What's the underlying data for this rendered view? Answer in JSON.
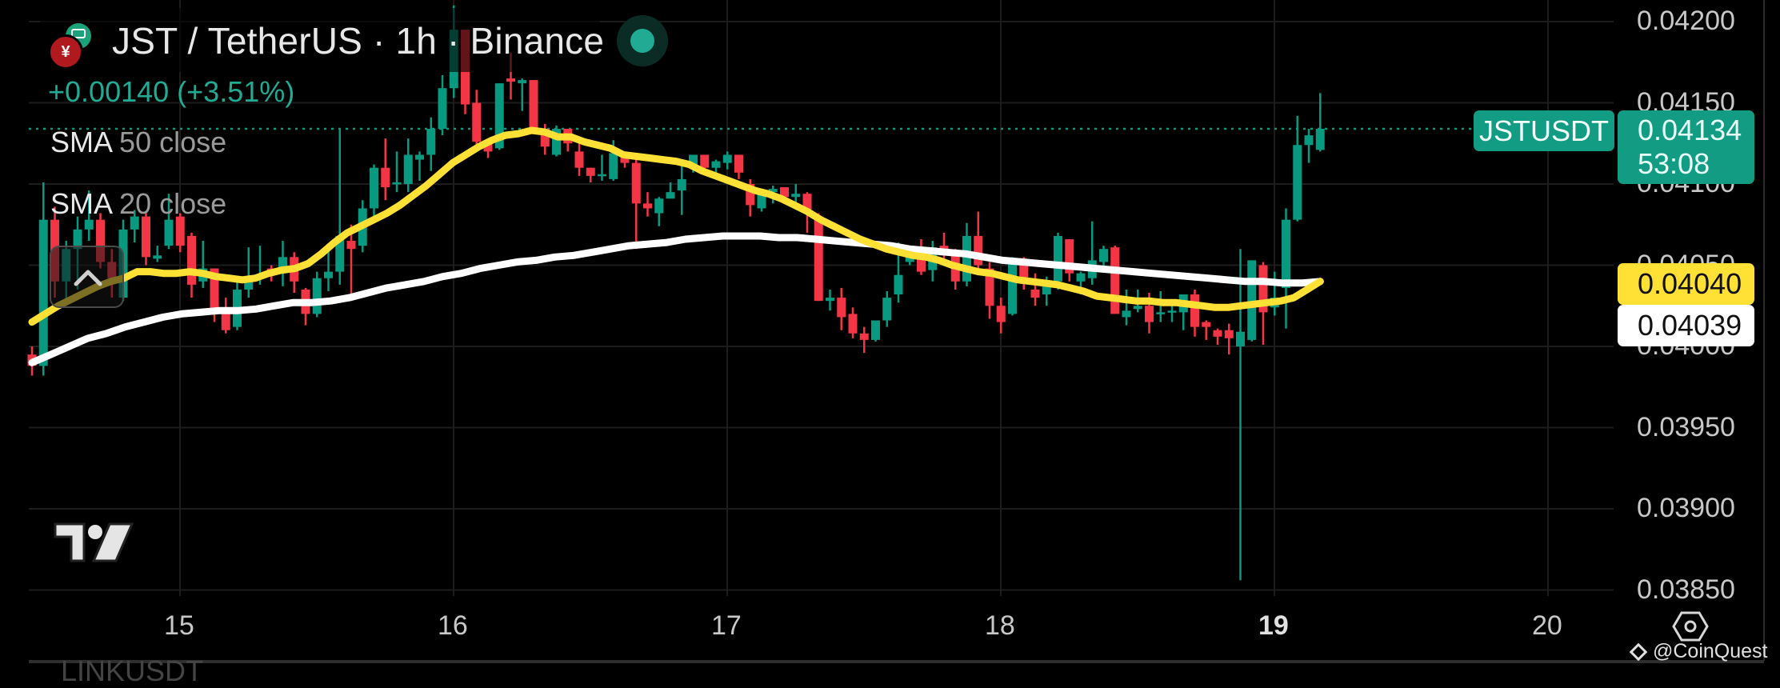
{
  "header": {
    "title": "JST / TetherUS · 1h · Binance",
    "symbol": "JST / TetherUS",
    "interval": "1h",
    "exchange": "Binance",
    "change": "+0.00140 (+3.51%)",
    "market_status": "open",
    "base_icon": "jst-coin-icon",
    "quote_icon": "usdt-coin-icon"
  },
  "indicators": [
    {
      "name": "SMA",
      "params": "50 close",
      "color": "#ffffff",
      "value": "0.04039"
    },
    {
      "name": "SMA",
      "params": "20 close",
      "color": "#ffe135",
      "value": "0.04040"
    }
  ],
  "price_scale": {
    "ticks": [
      "0.04200",
      "0.04150",
      "0.04100",
      "0.04050",
      "0.04000",
      "0.03950",
      "0.03900",
      "0.03850"
    ],
    "last_price": "0.04134",
    "countdown": "53:08",
    "symbol_tag": "JSTUSDT"
  },
  "time_scale": {
    "ticks": [
      "15",
      "16",
      "17",
      "18",
      "19",
      "20"
    ]
  },
  "colors": {
    "up": "#089981",
    "down": "#f23645",
    "background": "#000000",
    "grid": "#1c1c1c",
    "sma50": "#ffffff",
    "sma20": "#ffe135"
  },
  "watermark": "@CoinQuest",
  "next_symbol_partial": "LINKUSDT",
  "chart_data": {
    "type": "candlestick",
    "title": "JST / TetherUS · 1h · Binance",
    "interval": "1h",
    "x_ticks": [
      "15",
      "16",
      "17",
      "18",
      "19",
      "20"
    ],
    "ylim": [
      0.0385,
      0.0421
    ],
    "y_ticks": [
      0.042,
      0.0415,
      0.041,
      0.0405,
      0.04,
      0.0395,
      0.039,
      0.0385
    ],
    "grid": true,
    "last_price": 0.04134,
    "candles_ohlc": [
      [
        0.03995,
        0.04,
        0.03982,
        0.03988
      ],
      [
        0.03988,
        0.04101,
        0.03982,
        0.04078
      ],
      [
        0.04078,
        0.04086,
        0.0403,
        0.0404
      ],
      [
        0.0404,
        0.04065,
        0.04025,
        0.0406
      ],
      [
        0.0406,
        0.0408,
        0.04035,
        0.04072
      ],
      [
        0.04072,
        0.04096,
        0.04065,
        0.04078
      ],
      [
        0.04078,
        0.04082,
        0.04048,
        0.04052
      ],
      [
        0.04052,
        0.0406,
        0.0403,
        0.04042
      ],
      [
        0.0403,
        0.04078,
        0.04028,
        0.04072
      ],
      [
        0.04072,
        0.04084,
        0.04064,
        0.0408
      ],
      [
        0.0408,
        0.04082,
        0.0405,
        0.04055
      ],
      [
        0.04054,
        0.04062,
        0.04052,
        0.04056
      ],
      [
        0.04062,
        0.04094,
        0.0406,
        0.04078
      ],
      [
        0.0408,
        0.04082,
        0.04058,
        0.04062
      ],
      [
        0.04068,
        0.0407,
        0.0403,
        0.04038
      ],
      [
        0.0404,
        0.04065,
        0.04036,
        0.04048
      ],
      [
        0.04048,
        0.04048,
        0.04015,
        0.0402
      ],
      [
        0.0402,
        0.0403,
        0.04008,
        0.0401
      ],
      [
        0.04012,
        0.0404,
        0.0401,
        0.04035
      ],
      [
        0.04035,
        0.04061,
        0.0403,
        0.04042
      ],
      [
        0.04042,
        0.04062,
        0.04038,
        0.04044
      ],
      [
        0.04048,
        0.0405,
        0.0404,
        0.04045
      ],
      [
        0.04045,
        0.04065,
        0.04037,
        0.04055
      ],
      [
        0.04055,
        0.04058,
        0.04033,
        0.0404
      ],
      [
        0.04035,
        0.04036,
        0.04013,
        0.0402
      ],
      [
        0.0402,
        0.04046,
        0.04018,
        0.04042
      ],
      [
        0.04042,
        0.04062,
        0.04034,
        0.04046
      ],
      [
        0.04046,
        0.04134,
        0.04038,
        0.04068
      ],
      [
        0.04065,
        0.04075,
        0.04028,
        0.0406
      ],
      [
        0.04062,
        0.0409,
        0.04058,
        0.04085
      ],
      [
        0.04085,
        0.04112,
        0.0408,
        0.0411
      ],
      [
        0.0411,
        0.04128,
        0.0409,
        0.04098
      ],
      [
        0.041,
        0.0412,
        0.04095,
        0.04101
      ],
      [
        0.041,
        0.04128,
        0.04095,
        0.04118
      ],
      [
        0.04115,
        0.0412,
        0.04102,
        0.04118
      ],
      [
        0.04118,
        0.04141,
        0.04108,
        0.04134
      ],
      [
        0.04134,
        0.04167,
        0.0413,
        0.04159
      ],
      [
        0.04159,
        0.0421,
        0.04153,
        0.04195
      ],
      [
        0.04195,
        0.04193,
        0.04143,
        0.04149
      ],
      [
        0.0415,
        0.04158,
        0.0412,
        0.04126
      ],
      [
        0.04126,
        0.04126,
        0.04116,
        0.0412
      ],
      [
        0.04122,
        0.04162,
        0.04121,
        0.04162
      ],
      [
        0.04165,
        0.04181,
        0.04152,
        0.04163
      ],
      [
        0.04162,
        0.04165,
        0.04145,
        0.04164
      ],
      [
        0.04164,
        0.04164,
        0.04133,
        0.04134
      ],
      [
        0.04134,
        0.04137,
        0.04118,
        0.04123
      ],
      [
        0.04118,
        0.04136,
        0.04117,
        0.04134
      ],
      [
        0.04134,
        0.04134,
        0.0412,
        0.04125
      ],
      [
        0.0412,
        0.04125,
        0.04105,
        0.0411
      ],
      [
        0.0411,
        0.0411,
        0.04101,
        0.04105
      ],
      [
        0.04106,
        0.04118,
        0.04102,
        0.04106
      ],
      [
        0.04103,
        0.04127,
        0.04102,
        0.04119
      ],
      [
        0.04118,
        0.04119,
        0.0411,
        0.04113
      ],
      [
        0.04113,
        0.04116,
        0.0406,
        0.04088
      ],
      [
        0.04088,
        0.04095,
        0.0408,
        0.04085
      ],
      [
        0.04082,
        0.04092,
        0.04074,
        0.04091
      ],
      [
        0.04091,
        0.04101,
        0.04092,
        0.04095
      ],
      [
        0.04096,
        0.04113,
        0.04081,
        0.04103
      ],
      [
        0.0411,
        0.04115,
        0.04107,
        0.04118
      ],
      [
        0.04118,
        0.04118,
        0.04106,
        0.0411
      ],
      [
        0.0411,
        0.04115,
        0.04105,
        0.04114
      ],
      [
        0.04113,
        0.0412,
        0.04109,
        0.04118
      ],
      [
        0.04118,
        0.04118,
        0.04103,
        0.04107
      ],
      [
        0.041,
        0.04103,
        0.0408,
        0.04087
      ],
      [
        0.04085,
        0.04097,
        0.04083,
        0.04095
      ],
      [
        0.04095,
        0.04099,
        0.04088,
        0.04097
      ],
      [
        0.04098,
        0.04098,
        0.0409,
        0.04092
      ],
      [
        0.04092,
        0.041,
        0.04085,
        0.04094
      ],
      [
        0.04094,
        0.04095,
        0.0407,
        0.04082
      ],
      [
        0.0408,
        0.04082,
        0.04028,
        0.04028
      ],
      [
        0.04028,
        0.04035,
        0.04022,
        0.0403
      ],
      [
        0.0403,
        0.04036,
        0.0401,
        0.04018
      ],
      [
        0.0402,
        0.04024,
        0.04005,
        0.04008
      ],
      [
        0.04008,
        0.04012,
        0.03996,
        0.04004
      ],
      [
        0.04004,
        0.04016,
        0.04003,
        0.04016
      ],
      [
        0.04016,
        0.04034,
        0.04012,
        0.0403
      ],
      [
        0.04032,
        0.04064,
        0.04027,
        0.04044
      ],
      [
        0.04052,
        0.04059,
        0.0405,
        0.0406
      ],
      [
        0.04058,
        0.04066,
        0.04044,
        0.04046
      ],
      [
        0.04047,
        0.04065,
        0.0404,
        0.04061
      ],
      [
        0.04062,
        0.0407,
        0.04053,
        0.04056
      ],
      [
        0.04057,
        0.0406,
        0.04035,
        0.0404
      ],
      [
        0.0404,
        0.04076,
        0.04037,
        0.04068
      ],
      [
        0.04068,
        0.04083,
        0.04045,
        0.0405
      ],
      [
        0.04048,
        0.04052,
        0.04017,
        0.04025
      ],
      [
        0.04025,
        0.0403,
        0.04008,
        0.04015
      ],
      [
        0.0402,
        0.04055,
        0.04019,
        0.04052
      ],
      [
        0.04052,
        0.04055,
        0.04035,
        0.0404
      ],
      [
        0.04035,
        0.04045,
        0.04025,
        0.0403
      ],
      [
        0.04032,
        0.04043,
        0.04025,
        0.0404
      ],
      [
        0.0404,
        0.0407,
        0.04035,
        0.04068
      ],
      [
        0.04066,
        0.04066,
        0.0404,
        0.04045
      ],
      [
        0.0404,
        0.04046,
        0.04032,
        0.04045
      ],
      [
        0.04042,
        0.04077,
        0.04038,
        0.04053
      ],
      [
        0.04052,
        0.04062,
        0.04046,
        0.0406
      ],
      [
        0.04061,
        0.04062,
        0.04025,
        0.0402
      ],
      [
        0.04018,
        0.04035,
        0.04013,
        0.04022
      ],
      [
        0.04023,
        0.04035,
        0.04021,
        0.04025
      ],
      [
        0.04025,
        0.04033,
        0.04008,
        0.04015
      ],
      [
        0.0402,
        0.04034,
        0.04015,
        0.04021
      ],
      [
        0.04021,
        0.04026,
        0.04015,
        0.04022
      ],
      [
        0.04021,
        0.0403,
        0.0401,
        0.04032
      ],
      [
        0.04032,
        0.04035,
        0.04006,
        0.04012
      ],
      [
        0.04015,
        0.04016,
        0.04004,
        0.04012
      ],
      [
        0.0401,
        0.04011,
        0.04001,
        0.04006
      ],
      [
        0.0401,
        0.04014,
        0.03995,
        0.04005
      ],
      [
        0.04,
        0.0406,
        0.03856,
        0.04009
      ],
      [
        0.04004,
        0.04053,
        0.04003,
        0.04053
      ],
      [
        0.0405,
        0.04052,
        0.04001,
        0.04021
      ],
      [
        0.04024,
        0.04046,
        0.04019,
        0.0403
      ],
      [
        0.04036,
        0.04085,
        0.04011,
        0.04078
      ],
      [
        0.04078,
        0.04142,
        0.04077,
        0.04124
      ],
      [
        0.04124,
        0.04134,
        0.04113,
        0.0413
      ],
      [
        0.04121,
        0.04156,
        0.0412,
        0.04134
      ]
    ],
    "sma20": [
      0.04015,
      0.0402,
      0.04025,
      0.04029,
      0.04033,
      0.04037,
      0.0404,
      0.04042,
      0.04046,
      0.04046,
      0.04045,
      0.04045,
      0.04046,
      0.04045,
      0.04043,
      0.04042,
      0.04041,
      0.04042,
      0.04045,
      0.04047,
      0.04048,
      0.04051,
      0.04057,
      0.04064,
      0.0407,
      0.04074,
      0.04078,
      0.04082,
      0.04087,
      0.04093,
      0.04099,
      0.04106,
      0.04113,
      0.04118,
      0.04123,
      0.04127,
      0.0413,
      0.04131,
      0.04133,
      0.04132,
      0.04129,
      0.04129,
      0.04126,
      0.04124,
      0.04122,
      0.04118,
      0.04117,
      0.04116,
      0.04115,
      0.04114,
      0.04112,
      0.04108,
      0.04105,
      0.04102,
      0.04099,
      0.04096,
      0.04094,
      0.04091,
      0.04087,
      0.04083,
      0.04078,
      0.04074,
      0.0407,
      0.04066,
      0.04063,
      0.0406,
      0.04058,
      0.04056,
      0.04055,
      0.04053,
      0.0405,
      0.04048,
      0.04046,
      0.04045,
      0.04043,
      0.04041,
      0.0404,
      0.04039,
      0.04038,
      0.04036,
      0.04034,
      0.04031,
      0.0403,
      0.04029,
      0.04028,
      0.04028,
      0.04027,
      0.04027,
      0.04026,
      0.04025,
      0.04024,
      0.04024,
      0.04025,
      0.04026,
      0.04027,
      0.04028,
      0.0403,
      0.04035,
      0.0404
    ],
    "sma50": [
      0.0399,
      0.03995,
      0.04,
      0.04005,
      0.04008,
      0.04012,
      0.04015,
      0.04018,
      0.0402,
      0.04021,
      0.04022,
      0.04022,
      0.04023,
      0.04025,
      0.04027,
      0.04027,
      0.04028,
      0.0403,
      0.04033,
      0.04036,
      0.04038,
      0.0404,
      0.04043,
      0.04045,
      0.04048,
      0.0405,
      0.04052,
      0.04053,
      0.04055,
      0.04056,
      0.04058,
      0.0406,
      0.04062,
      0.04063,
      0.04064,
      0.04066,
      0.04067,
      0.04068,
      0.04068,
      0.04068,
      0.04067,
      0.04067,
      0.04066,
      0.04065,
      0.04064,
      0.04063,
      0.04062,
      0.0406,
      0.04059,
      0.04058,
      0.04057,
      0.04055,
      0.04053,
      0.04052,
      0.04051,
      0.0405,
      0.04049,
      0.04048,
      0.04047,
      0.04046,
      0.04045,
      0.04044,
      0.04043,
      0.04042,
      0.04041,
      0.0404,
      0.0404,
      0.04039,
      0.04039,
      0.0404
    ]
  }
}
